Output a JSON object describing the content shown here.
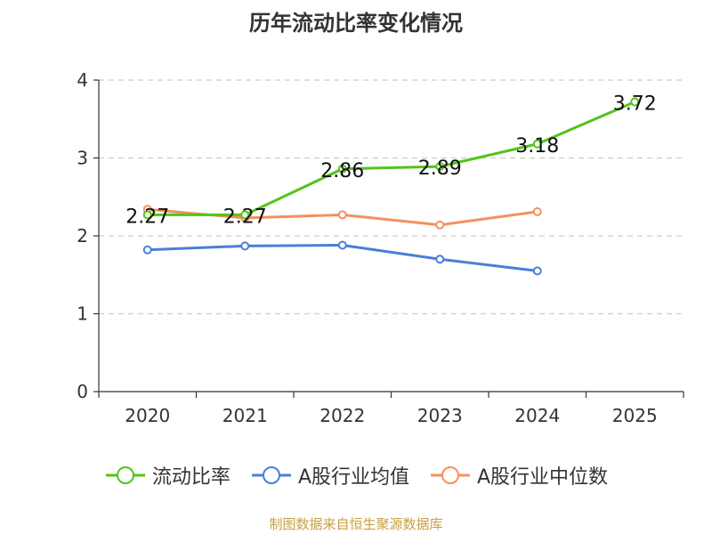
{
  "chart_data": {
    "type": "line",
    "title": "历年流动比率变化情况",
    "categories": [
      "2020",
      "2021",
      "2022",
      "2023",
      "2024",
      "2025"
    ],
    "ylim": [
      0,
      4
    ],
    "yticks": [
      0,
      1,
      2,
      3,
      4
    ],
    "grid": true,
    "legend_position": "bottom",
    "series": [
      {
        "name": "流动比率",
        "color": "#52c41a",
        "values": [
          2.27,
          2.27,
          2.86,
          2.89,
          3.18,
          3.72
        ],
        "labels": [
          "2.27",
          "2.27",
          "2.86",
          "2.89",
          "3.18",
          "3.72"
        ]
      },
      {
        "name": "A股行业均值",
        "color": "#4a7fd8",
        "values": [
          1.82,
          1.87,
          1.88,
          1.7,
          1.55,
          null
        ]
      },
      {
        "name": "A股行业中位数",
        "color": "#f5905c",
        "values": [
          2.34,
          2.23,
          2.27,
          2.14,
          2.31,
          null
        ]
      }
    ]
  },
  "source": "制图数据来自恒生聚源数据库"
}
